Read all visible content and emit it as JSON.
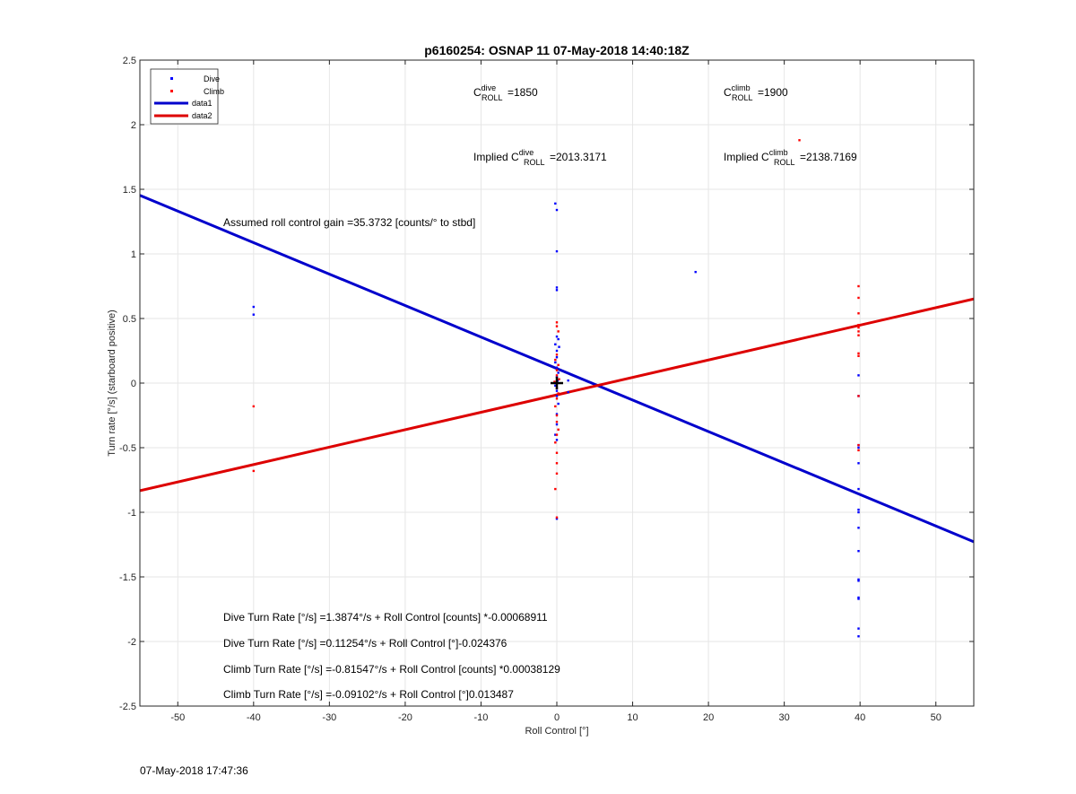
{
  "chart_data": {
    "type": "scatter",
    "title": "p6160254: OSNAP 11 07-May-2018 14:40:18Z",
    "xlabel": "Roll Control [°]",
    "ylabel": "Turn rate [°/s] (starboard positive)",
    "xlim": [
      -55,
      55
    ],
    "ylim": [
      -2.5,
      2.5
    ],
    "xticks": [
      -50,
      -40,
      -30,
      -20,
      -10,
      0,
      10,
      20,
      30,
      40,
      50
    ],
    "yticks": [
      -2.5,
      -2,
      -1.5,
      -1,
      -0.5,
      0,
      0.5,
      1,
      1.5,
      2,
      2.5
    ],
    "xtick_labels": [
      "-50",
      "-40",
      "-30",
      "-20",
      "-10",
      "0",
      "10",
      "20",
      "30",
      "40",
      "50"
    ],
    "ytick_labels": [
      "-2.5",
      "-2",
      "-1.5",
      "-1",
      "-0.5",
      "0",
      "0.5",
      "1",
      "1.5",
      "2",
      "2.5"
    ],
    "grid": true,
    "legend_position": "top-left",
    "series": [
      {
        "name": "Dive",
        "kind": "points",
        "color": "#0000ff",
        "points": [
          [
            -40,
            0.59
          ],
          [
            -40,
            0.53
          ],
          [
            -0.2,
            1.39
          ],
          [
            0,
            1.34
          ],
          [
            0,
            1.02
          ],
          [
            0,
            0.74
          ],
          [
            0,
            0.72
          ],
          [
            0,
            0.36
          ],
          [
            0.2,
            0.34
          ],
          [
            -0.2,
            0.3
          ],
          [
            0.3,
            0.28
          ],
          [
            0,
            0.25
          ],
          [
            0,
            0.2
          ],
          [
            -0.2,
            0.16
          ],
          [
            0,
            0.12
          ],
          [
            0.2,
            0.08
          ],
          [
            0,
            0.05
          ],
          [
            0.1,
            0.02
          ],
          [
            -0.2,
            -0.02
          ],
          [
            0,
            -0.06
          ],
          [
            0,
            -0.1
          ],
          [
            0.2,
            -0.16
          ],
          [
            0,
            -0.24
          ],
          [
            0,
            -0.32
          ],
          [
            -0.2,
            -0.4
          ],
          [
            0,
            -0.44
          ],
          [
            0,
            -1.05
          ],
          [
            1.5,
            0.02
          ],
          [
            1.5,
            -0.07
          ],
          [
            18.3,
            0.86
          ],
          [
            39.8,
            0.06
          ],
          [
            39.8,
            -0.1
          ],
          [
            39.8,
            -0.48
          ],
          [
            39.8,
            -0.5
          ],
          [
            39.8,
            -0.62
          ],
          [
            39.8,
            -0.82
          ],
          [
            39.8,
            -0.98
          ],
          [
            39.8,
            -1.0
          ],
          [
            39.8,
            -1.12
          ],
          [
            39.8,
            -1.3
          ],
          [
            39.8,
            -1.52
          ],
          [
            39.8,
            -1.53
          ],
          [
            39.8,
            -1.66
          ],
          [
            39.8,
            -1.67
          ],
          [
            39.8,
            -1.9
          ],
          [
            39.8,
            -1.96
          ]
        ]
      },
      {
        "name": "Climb",
        "kind": "points",
        "color": "#ff0000",
        "points": [
          [
            -40,
            -0.18
          ],
          [
            -40,
            -0.68
          ],
          [
            0,
            0.47
          ],
          [
            0,
            0.44
          ],
          [
            0.2,
            0.4
          ],
          [
            0,
            0.22
          ],
          [
            -0.2,
            0.18
          ],
          [
            0.2,
            0.14
          ],
          [
            0,
            0.1
          ],
          [
            0,
            0.06
          ],
          [
            0.3,
            0.03
          ],
          [
            -0.3,
            0.01
          ],
          [
            0,
            -0.04
          ],
          [
            0.2,
            -0.08
          ],
          [
            0,
            -0.12
          ],
          [
            -0.2,
            -0.18
          ],
          [
            0,
            -0.25
          ],
          [
            0,
            -0.3
          ],
          [
            0.2,
            -0.36
          ],
          [
            0,
            -0.4
          ],
          [
            -0.2,
            -0.46
          ],
          [
            0,
            -0.54
          ],
          [
            0,
            -0.62
          ],
          [
            0,
            -0.7
          ],
          [
            -0.2,
            -0.82
          ],
          [
            0,
            -1.04
          ],
          [
            32,
            1.88
          ],
          [
            39.8,
            0.75
          ],
          [
            39.8,
            0.66
          ],
          [
            39.8,
            0.54
          ],
          [
            39.8,
            0.45
          ],
          [
            39.8,
            0.43
          ],
          [
            39.8,
            0.4
          ],
          [
            39.8,
            0.37
          ],
          [
            39.8,
            0.23
          ],
          [
            39.8,
            0.21
          ],
          [
            39.8,
            -0.1
          ],
          [
            39.8,
            -0.48
          ],
          [
            39.8,
            -0.52
          ]
        ]
      },
      {
        "name": "data1",
        "kind": "line",
        "color": "#0000cc",
        "points": [
          [
            -55,
            1.453
          ],
          [
            55,
            -1.228
          ]
        ]
      },
      {
        "name": "data2",
        "kind": "line",
        "color": "#dd0000",
        "points": [
          [
            -55,
            -0.833
          ],
          [
            55,
            0.651
          ]
        ]
      }
    ],
    "marker": {
      "x": 0,
      "y": 0,
      "symbol": "+"
    },
    "annotations": {
      "c_dive_letter": "C",
      "c_dive_sup": "dive",
      "c_dive_sub": "ROLL",
      "c_dive_value": "=1850",
      "c_climb_letter": "C",
      "c_climb_sup": "climb",
      "c_climb_sub": "ROLL",
      "c_climb_value": "=1900",
      "implied_dive_prefix": "Implied C",
      "implied_dive_sup": "dive",
      "implied_dive_sub": "ROLL",
      "implied_dive_value": "=2013.3171",
      "implied_climb_prefix": "Implied C",
      "implied_climb_sup": "climb",
      "implied_climb_sub": "ROLL",
      "implied_climb_value": "=2138.7169",
      "gain": "Assumed roll control gain =35.3732 [counts/° to stbd]",
      "eq1": "Dive Turn Rate [°/s] =1.3874°/s + Roll Control [counts] *-0.00068911",
      "eq2": "Dive Turn Rate [°/s] =0.11254°/s + Roll Control [°]-0.024376",
      "eq3": "Climb Turn Rate [°/s] =-0.81547°/s + Roll Control [counts] *0.00038129",
      "eq4": "Climb Turn Rate [°/s] =-0.09102°/s + Roll Control [°]0.013487"
    }
  },
  "footer": {
    "timestamp": "07-May-2018 17:47:36"
  }
}
